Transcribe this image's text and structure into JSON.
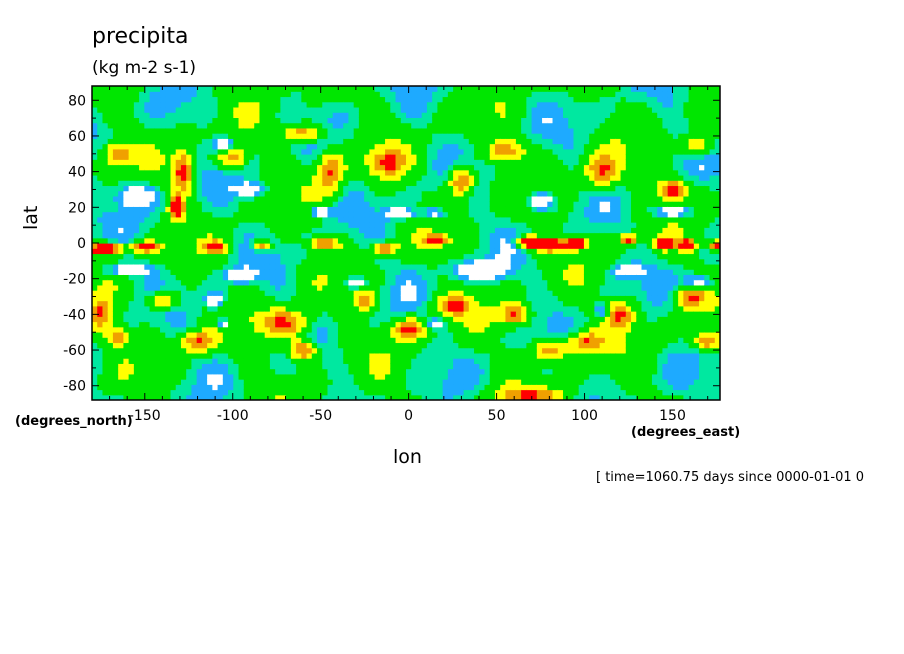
{
  "chart_data": {
    "type": "heatmap",
    "title": "precipita",
    "units": "(kg m-2 s-1)",
    "xlabel": "lon",
    "ylabel": "lat",
    "x_units": "(degrees_east)",
    "y_units": "(degrees_north)",
    "xlim": [
      -180,
      177
    ],
    "ylim": [
      -88,
      88
    ],
    "x_ticks": [
      "-150",
      "-100",
      "-50",
      "0",
      "50",
      "100",
      "150"
    ],
    "y_ticks": [
      "80",
      "60",
      "40",
      "20",
      "0",
      "-20",
      "-40",
      "-60",
      "-80"
    ],
    "footer": "[ time=1060.75 days since 0000-01-01 0",
    "colors": {
      "lowest": "#ffffff",
      "level1": "#1eaaff",
      "level2": "#00e8a0",
      "level3": "#00e600",
      "level4": "#ffff00",
      "level5": "#f0a000",
      "highest": "#ff0000"
    }
  }
}
